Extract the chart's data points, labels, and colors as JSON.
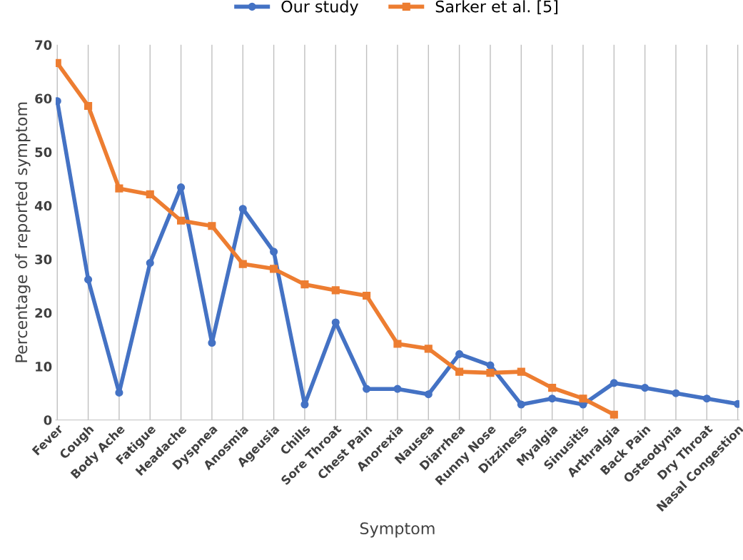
{
  "chart_data": {
    "type": "line",
    "xlabel": "Symptom",
    "ylabel": "Percentage of reported symptom",
    "categories": [
      "Fever",
      "Cough",
      "Body Ache",
      "Fatigue",
      "Headache",
      "Dyspnea",
      "Anosmia",
      "Ageusia",
      "Chills",
      "Sore Throat",
      "Chest Pain",
      "Anorexia",
      "Nausea",
      "Diarrhea",
      "Runny Nose",
      "Dizziness",
      "Myalgia",
      "Sinusitis",
      "Arthralgia",
      "Back Pain",
      "Osteodynia",
      "Dry Throat",
      "Nasal Congestion"
    ],
    "series": [
      {
        "name": "Our study",
        "color": "#4472c4",
        "marker": "circle",
        "values": [
          59.5,
          26.2,
          5.1,
          29.3,
          43.4,
          14.4,
          39.4,
          31.4,
          2.9,
          18.2,
          5.8,
          5.8,
          4.8,
          12.3,
          10.2,
          2.9,
          4,
          2.9,
          6.9,
          6,
          5,
          4,
          3
        ]
      },
      {
        "name": "Sarker et al. [5]",
        "color": "#ed7d31",
        "marker": "square",
        "values": [
          66.6,
          58.6,
          43.2,
          42.1,
          37.2,
          36.2,
          29.1,
          28.2,
          25.3,
          24.2,
          23.2,
          14.2,
          13.3,
          9,
          8.8,
          9,
          6,
          4,
          1,
          null,
          null,
          null,
          null
        ]
      }
    ],
    "ylim": [
      0,
      70
    ],
    "yticks": [
      0,
      10,
      20,
      30,
      40,
      50,
      60,
      70
    ],
    "grid": "x",
    "legend": "top",
    "line_style": "solid"
  }
}
